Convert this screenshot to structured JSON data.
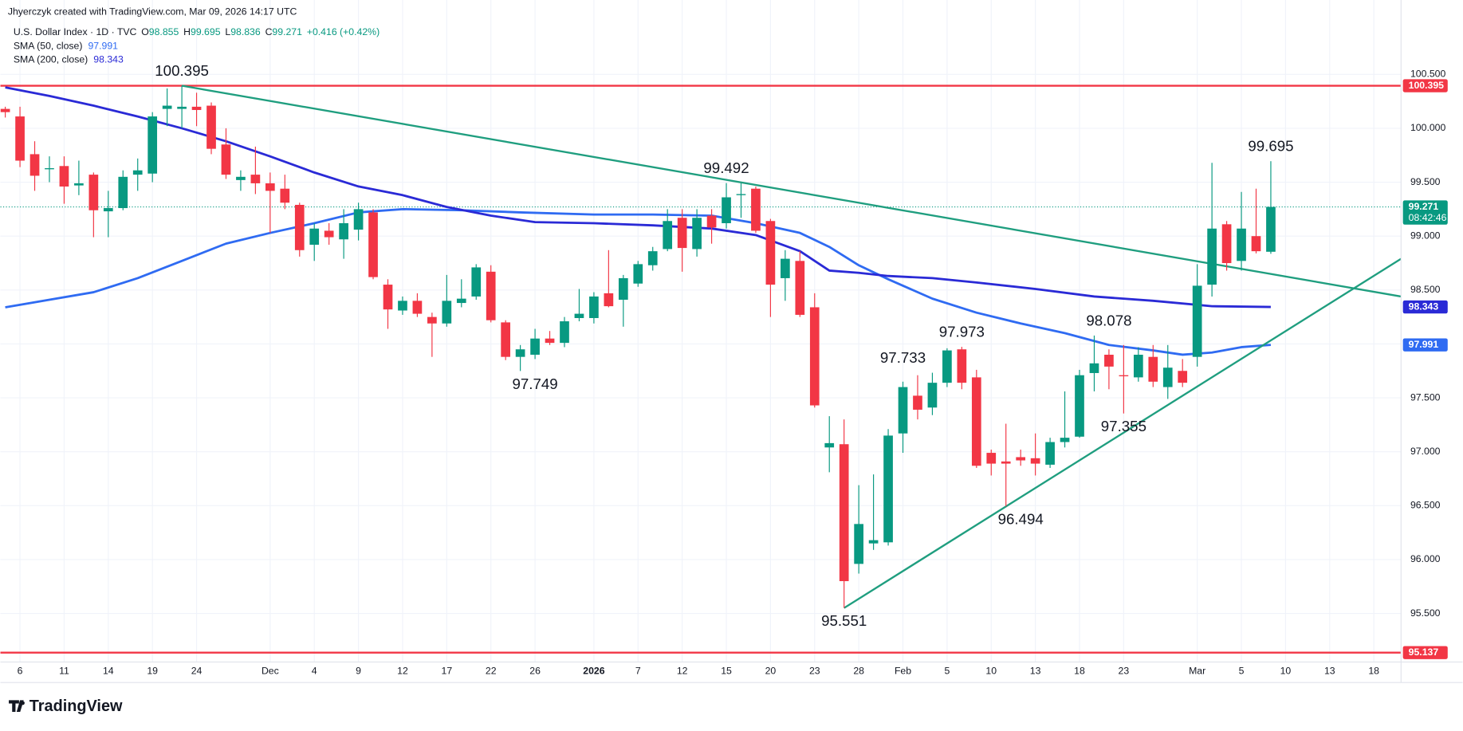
{
  "chart_data": {
    "type": "candlestick",
    "attribution": "Jhyerczyk created with TradingView.com, Mar 09, 2026 14:17 UTC",
    "symbol": "U.S. Dollar Index · 1D · TVC",
    "ohlc_keys": [
      "O",
      "H",
      "L",
      "C"
    ],
    "change": "+0.416 (+0.42%)",
    "countdown": "08:42:46",
    "footer": "TradingView",
    "up_color": "#089981",
    "down_color": "#f23645",
    "open": [
      100.18,
      100.11,
      99.76,
      99.62,
      99.65,
      99.47,
      99.57,
      99.23,
      99.26,
      99.57,
      99.58,
      100.18,
      100.18,
      100.2,
      100.21,
      99.85,
      99.52,
      99.57,
      99.49,
      99.44,
      99.29,
      98.92,
      99.05,
      98.97,
      99.06,
      99.22,
      98.55,
      98.31,
      98.4,
      98.25,
      98.19,
      98.38,
      98.44,
      98.67,
      98.2,
      97.88,
      97.9,
      98.05,
      98.01,
      98.24,
      98.24,
      98.47,
      98.41,
      98.56,
      98.73,
      98.88,
      99.17,
      98.88,
      99.19,
      99.12,
      99.38,
      99.44,
      99.14,
      98.61,
      98.77,
      98.34,
      97.04,
      97.07,
      95.96,
      96.15,
      96.16,
      97.17,
      97.52,
      97.41,
      97.64,
      97.95,
      97.69,
      96.99,
      96.91,
      96.95,
      96.94,
      96.88,
      97.09,
      97.14,
      97.73,
      97.9,
      97.71,
      97.69,
      97.88,
      97.6,
      97.75,
      97.88,
      98.55,
      99.11,
      98.77,
      99.0,
      98.855
    ],
    "high": [
      100.2,
      100.2,
      99.88,
      99.74,
      99.74,
      99.7,
      99.59,
      99.42,
      99.61,
      99.72,
      100.15,
      100.37,
      100.395,
      100.33,
      100.24,
      100.0,
      99.61,
      99.83,
      99.59,
      99.57,
      99.31,
      99.12,
      99.12,
      99.25,
      99.31,
      99.25,
      98.6,
      98.44,
      98.47,
      98.29,
      98.64,
      98.6,
      98.74,
      98.73,
      98.22,
      97.99,
      98.14,
      98.12,
      98.25,
      98.51,
      98.48,
      98.87,
      98.64,
      98.77,
      98.9,
      99.25,
      99.25,
      99.25,
      99.25,
      99.492,
      99.49,
      99.46,
      99.16,
      98.87,
      98.86,
      98.47,
      97.33,
      97.3,
      96.69,
      96.79,
      97.21,
      97.65,
      97.71,
      97.733,
      97.96,
      97.973,
      97.76,
      97.02,
      97.26,
      97.02,
      97.17,
      97.13,
      97.56,
      97.76,
      98.078,
      97.95,
      97.99,
      97.97,
      97.99,
      97.99,
      97.86,
      98.74,
      99.68,
      99.14,
      99.41,
      99.44,
      99.695
    ],
    "low": [
      100.1,
      99.64,
      99.42,
      99.5,
      99.3,
      99.38,
      98.99,
      98.99,
      99.24,
      99.42,
      99.5,
      100.02,
      100.0,
      100.02,
      99.76,
      99.53,
      99.42,
      99.39,
      99.03,
      99.25,
      98.81,
      98.77,
      98.92,
      98.79,
      98.96,
      98.6,
      98.14,
      98.27,
      98.25,
      97.88,
      98.16,
      98.34,
      98.41,
      98.2,
      97.85,
      97.749,
      97.86,
      97.99,
      97.97,
      98.21,
      98.19,
      98.34,
      98.16,
      98.53,
      98.68,
      98.86,
      98.67,
      98.81,
      98.93,
      99.07,
      99.17,
      99.03,
      98.25,
      98.4,
      98.25,
      97.41,
      96.81,
      95.551,
      95.87,
      96.09,
      96.13,
      96.99,
      97.3,
      97.34,
      97.6,
      97.58,
      96.85,
      96.78,
      96.494,
      96.87,
      96.78,
      96.85,
      97.04,
      97.13,
      97.56,
      97.58,
      97.355,
      97.65,
      97.6,
      97.49,
      97.6,
      97.79,
      98.44,
      98.68,
      98.68,
      98.84,
      98.836
    ],
    "close": [
      100.15,
      99.7,
      99.56,
      99.63,
      99.46,
      99.49,
      99.24,
      99.26,
      99.55,
      99.61,
      100.11,
      100.21,
      100.2,
      100.17,
      99.81,
      99.57,
      99.55,
      99.49,
      99.42,
      99.31,
      98.87,
      99.07,
      98.99,
      99.12,
      99.25,
      98.62,
      98.32,
      98.4,
      98.28,
      98.19,
      98.4,
      98.42,
      98.71,
      98.22,
      97.88,
      97.95,
      98.05,
      98.01,
      98.21,
      98.28,
      98.44,
      98.35,
      98.61,
      98.74,
      98.86,
      99.14,
      98.89,
      99.17,
      99.08,
      99.36,
      99.39,
      99.05,
      98.55,
      98.79,
      98.27,
      97.43,
      97.08,
      95.8,
      96.33,
      96.18,
      97.15,
      97.6,
      97.39,
      97.64,
      97.94,
      97.64,
      96.87,
      96.89,
      96.89,
      96.92,
      96.89,
      97.09,
      97.13,
      97.71,
      97.82,
      97.79,
      97.7,
      97.9,
      97.65,
      97.78,
      97.64,
      98.54,
      99.07,
      98.75,
      99.07,
      98.86,
      99.271
    ],
    "sma": [
      {
        "name": "SMA (50, close)",
        "color": "#2f6bf2",
        "x": [
          0,
          3,
          6,
          9,
          12,
          15,
          18,
          21,
          24,
          27,
          31,
          35,
          40,
          44,
          48,
          51,
          54,
          56,
          58,
          60,
          63,
          66,
          69,
          72,
          75,
          78,
          80,
          82,
          84,
          86
        ],
        "values": [
          98.34,
          98.41,
          98.48,
          98.61,
          98.77,
          98.93,
          99.03,
          99.12,
          99.22,
          99.25,
          99.24,
          99.22,
          99.2,
          99.2,
          99.19,
          99.12,
          99.03,
          98.9,
          98.73,
          98.6,
          98.42,
          98.29,
          98.19,
          98.1,
          97.99,
          97.94,
          97.9,
          97.92,
          97.97,
          97.991
        ]
      },
      {
        "name": "SMA (200, close)",
        "color": "#2a2ad6",
        "x": [
          0,
          3,
          6,
          9,
          12,
          15,
          18,
          21,
          24,
          27,
          30,
          33,
          36,
          40,
          44,
          48,
          51,
          54,
          56,
          58,
          60,
          63,
          66,
          70,
          74,
          78,
          82,
          86
        ],
        "values": [
          100.38,
          100.3,
          100.21,
          100.11,
          100.0,
          99.88,
          99.74,
          99.59,
          99.46,
          99.38,
          99.27,
          99.19,
          99.13,
          99.12,
          99.1,
          99.07,
          99.01,
          98.86,
          98.68,
          98.66,
          98.63,
          98.61,
          98.57,
          98.51,
          98.44,
          98.4,
          98.35,
          98.343
        ]
      }
    ],
    "hlines": [
      {
        "value": 100.395,
        "color": "#f23645"
      },
      {
        "value": 95.137,
        "color": "#f23645"
      }
    ],
    "trendlines": [
      {
        "color": "#1f9e7f",
        "points": [
          [
            12,
            100.395
          ],
          [
            94.85,
            98.44
          ]
        ]
      },
      {
        "color": "#1f9e7f",
        "points": [
          [
            57,
            95.551
          ],
          [
            94.85,
            98.79
          ]
        ]
      }
    ],
    "annotations": [
      {
        "text": "100.395",
        "x": 12,
        "y": 100.395,
        "pos": "above"
      },
      {
        "text": "99.492",
        "x": 49,
        "y": 99.492,
        "pos": "above"
      },
      {
        "text": "99.695",
        "x": 86,
        "y": 99.695,
        "pos": "above"
      },
      {
        "text": "97.973",
        "x": 65,
        "y": 97.973,
        "pos": "above"
      },
      {
        "text": "97.733",
        "x": 61,
        "y": 97.733,
        "pos": "above"
      },
      {
        "text": "98.078",
        "x": 75,
        "y": 98.078,
        "pos": "above"
      },
      {
        "text": "97.749",
        "x": 36,
        "y": 97.749,
        "pos": "below"
      },
      {
        "text": "95.551",
        "x": 57,
        "y": 95.551,
        "pos": "below"
      },
      {
        "text": "96.494",
        "x": 69,
        "y": 96.494,
        "pos": "below"
      },
      {
        "text": "97.355",
        "x": 76,
        "y": 97.355,
        "pos": "below"
      }
    ],
    "xlim": [
      -0.331,
      94.85
    ],
    "xticks": [
      {
        "value": 1,
        "label": "6"
      },
      {
        "value": 4,
        "label": "11"
      },
      {
        "value": 7,
        "label": "14"
      },
      {
        "value": 10,
        "label": "19"
      },
      {
        "value": 13,
        "label": "24"
      },
      {
        "value": 18,
        "label": "Dec"
      },
      {
        "value": 21,
        "label": "4"
      },
      {
        "value": 24,
        "label": "9"
      },
      {
        "value": 27,
        "label": "12"
      },
      {
        "value": 30,
        "label": "17"
      },
      {
        "value": 33,
        "label": "22"
      },
      {
        "value": 36,
        "label": "26"
      },
      {
        "value": 40,
        "label": "2026",
        "bold": true
      },
      {
        "value": 43,
        "label": "7"
      },
      {
        "value": 46,
        "label": "12"
      },
      {
        "value": 49,
        "label": "15"
      },
      {
        "value": 52,
        "label": "20"
      },
      {
        "value": 55,
        "label": "23"
      },
      {
        "value": 58,
        "label": "28"
      },
      {
        "value": 61,
        "label": "Feb"
      },
      {
        "value": 64,
        "label": "5"
      },
      {
        "value": 67,
        "label": "10"
      },
      {
        "value": 70,
        "label": "13"
      },
      {
        "value": 73,
        "label": "18"
      },
      {
        "value": 76,
        "label": "23"
      },
      {
        "value": 81,
        "label": "Mar"
      },
      {
        "value": 84,
        "label": "5"
      },
      {
        "value": 87,
        "label": "10"
      },
      {
        "value": 90,
        "label": "13"
      },
      {
        "value": 93,
        "label": "18"
      }
    ],
    "ylim": [
      95.05,
      101.19
    ],
    "yticks": [
      {
        "value": 95.5,
        "label": "95.500"
      },
      {
        "value": 96,
        "label": "96.000"
      },
      {
        "value": 96.5,
        "label": "96.500"
      },
      {
        "value": 97,
        "label": "97.000"
      },
      {
        "value": 97.5,
        "label": "97.500"
      },
      {
        "value": 98,
        "label": "98.000"
      },
      {
        "value": 98.5,
        "label": "98.500"
      },
      {
        "value": 99,
        "label": "99.000"
      },
      {
        "value": 99.5,
        "label": "99.500"
      },
      {
        "value": 100,
        "label": "100.000"
      },
      {
        "value": 100.5,
        "label": "100.500"
      }
    ],
    "grid": true
  }
}
